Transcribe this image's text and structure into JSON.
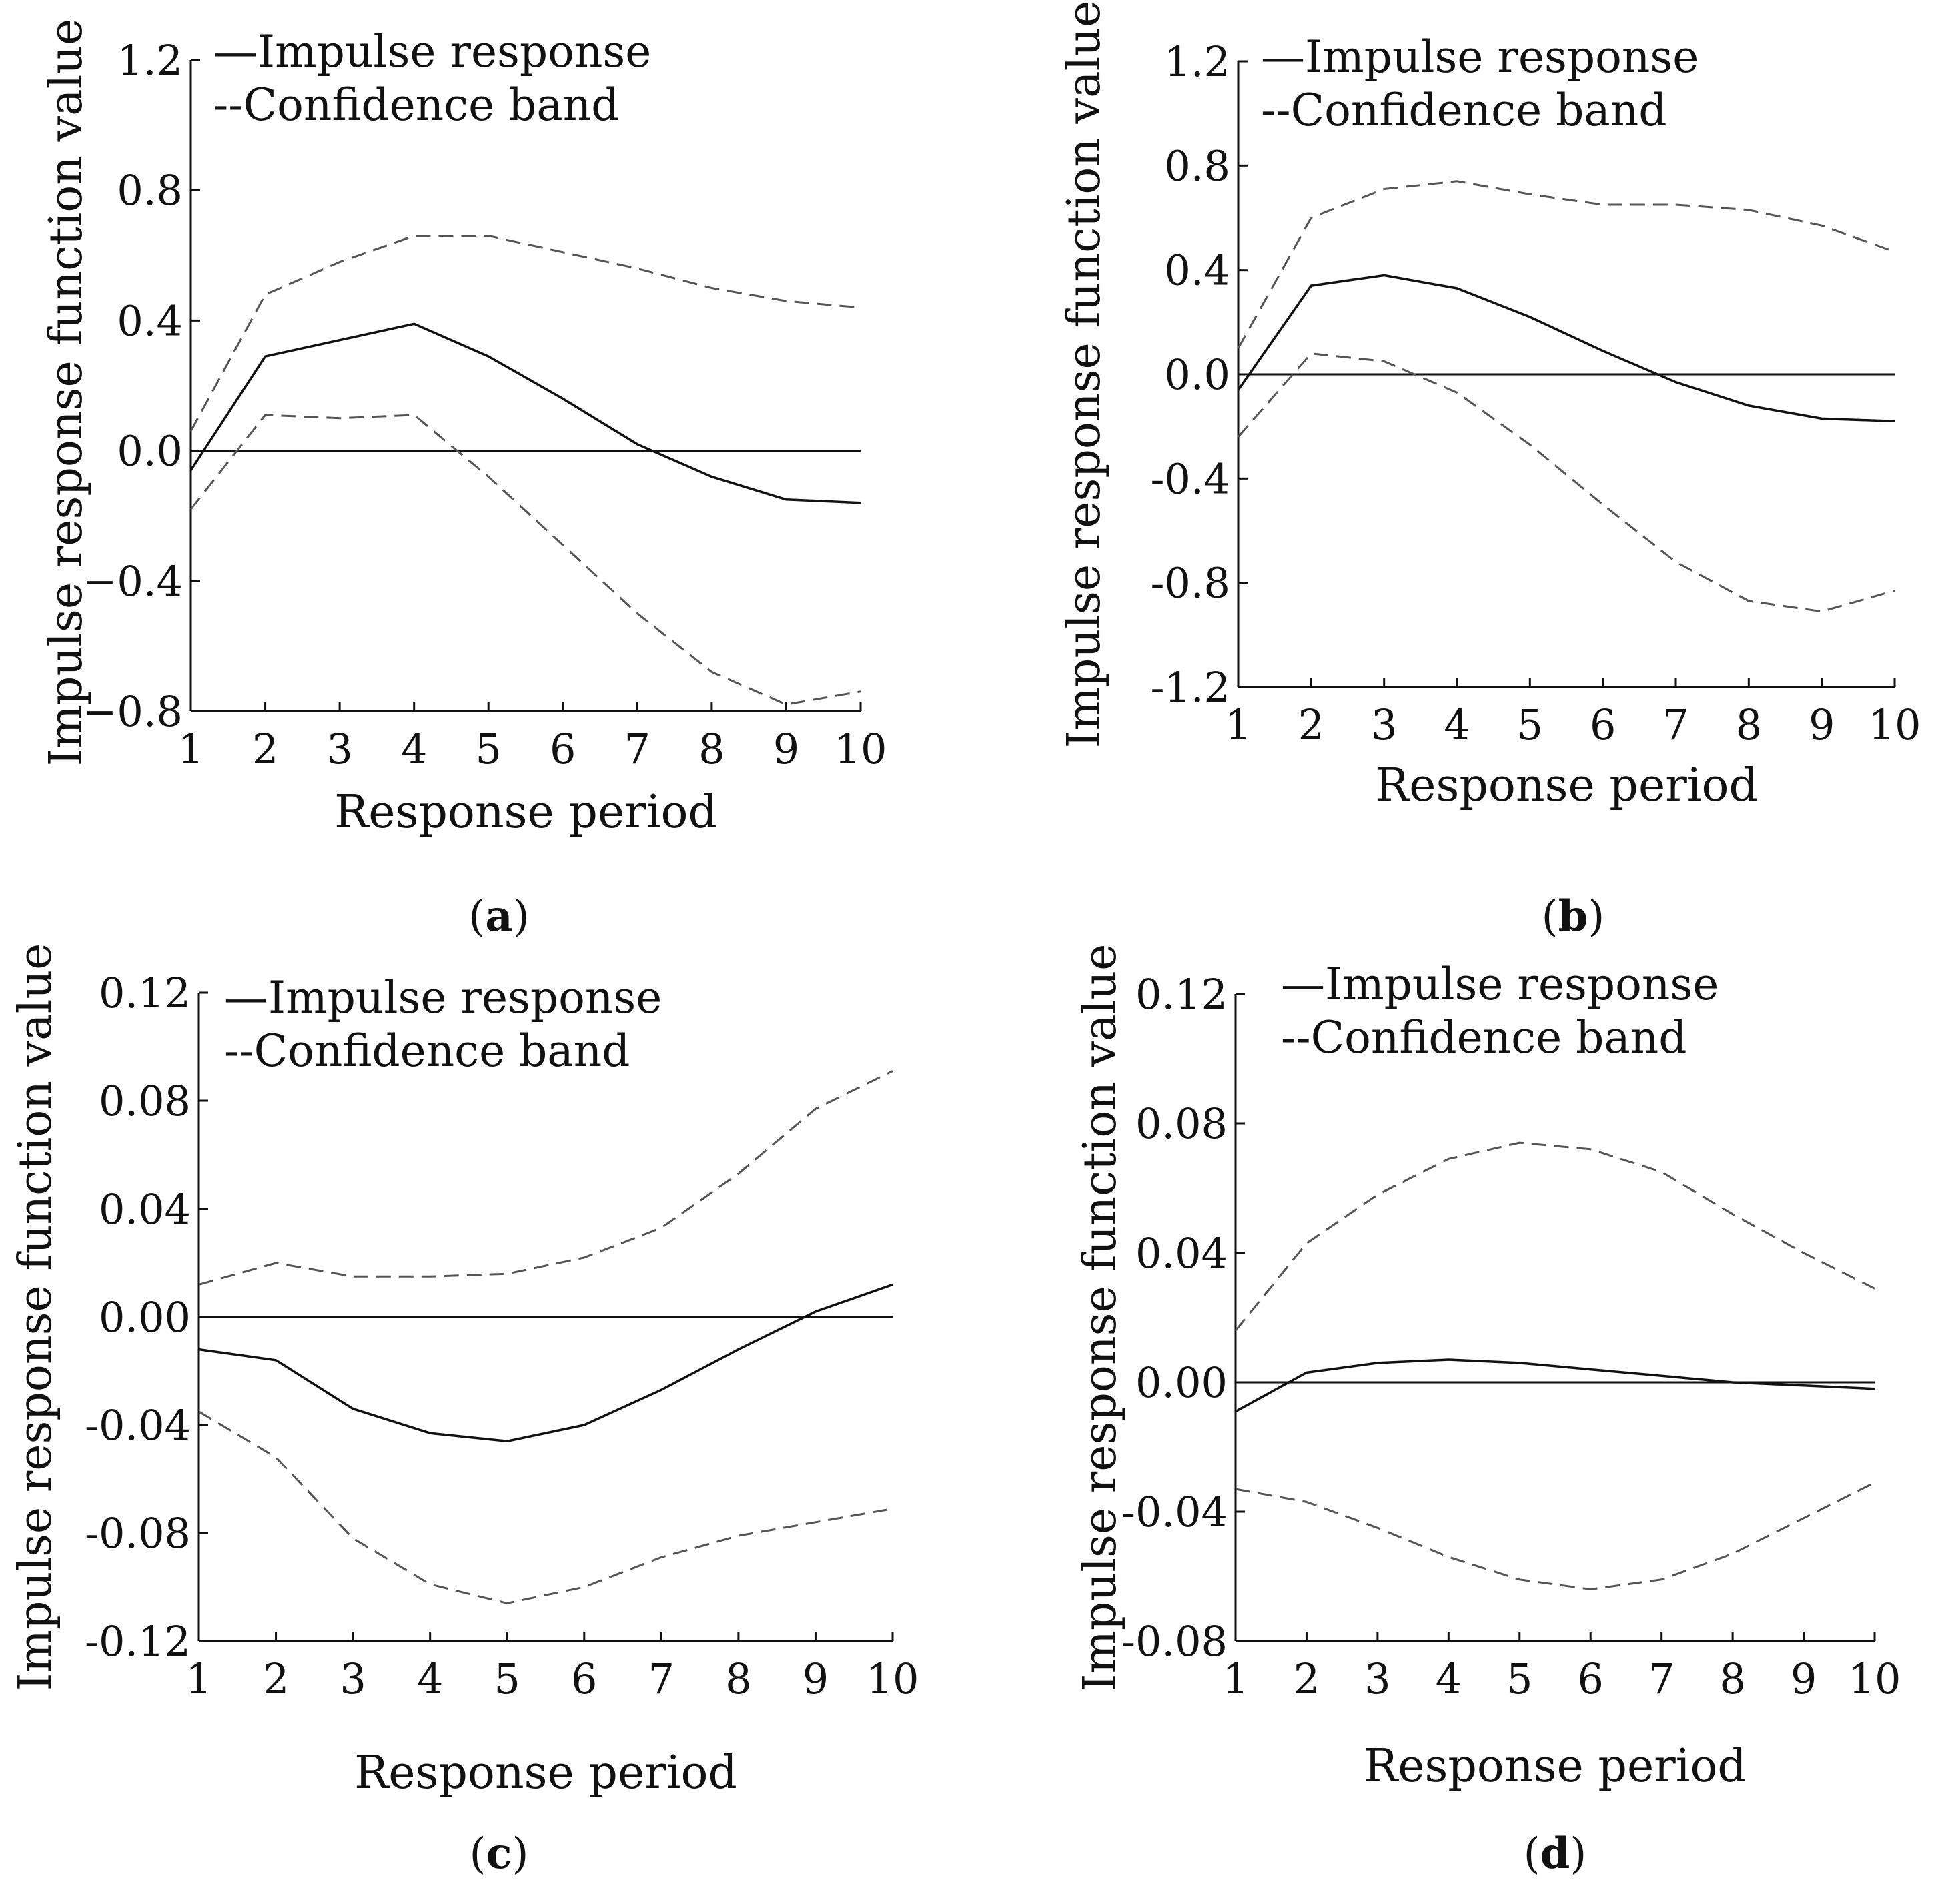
{
  "figure": {
    "colors": {
      "line": "#111111",
      "band": "#555555",
      "axis": "#111111",
      "background": "#ffffff"
    },
    "panels": [
      {
        "label_prefix": "(",
        "label_letter": "a",
        "label_suffix": ")"
      },
      {
        "label_prefix": "(",
        "label_letter": "b",
        "label_suffix": ")"
      },
      {
        "label_prefix": "(",
        "label_letter": "c",
        "label_suffix": ")"
      },
      {
        "label_prefix": "(",
        "label_letter": "d",
        "label_suffix": ")"
      }
    ]
  },
  "chart_data": [
    {
      "type": "line",
      "panel": "a",
      "xlabel": "Response period",
      "ylabel": "Impulse response function value",
      "legend": [
        "—Impulse response",
        "--Confidence band"
      ],
      "legend_position": "top-left",
      "x": [
        1,
        2,
        3,
        4,
        5,
        6,
        7,
        8,
        9,
        10
      ],
      "x_ticks": [
        "1",
        "2",
        "3",
        "4",
        "5",
        "6",
        "7",
        "8",
        "9",
        "10"
      ],
      "xlim": [
        1,
        10
      ],
      "y_ticks": [
        1.2,
        0.8,
        0.4,
        0.0,
        -0.4,
        -0.8
      ],
      "y_tick_labels": [
        "1.2",
        "0.8",
        "0.4",
        "0.0",
        "−0.4",
        "−0.8"
      ],
      "ylim": [
        -0.8,
        1.2
      ],
      "reference_line": 0,
      "series": [
        {
          "name": "Impulse response",
          "style": "solid",
          "values": [
            -0.06,
            0.29,
            0.34,
            0.39,
            0.29,
            0.16,
            0.02,
            -0.08,
            -0.15,
            -0.16
          ]
        },
        {
          "name": "Confidence band upper",
          "style": "dashed",
          "values": [
            0.06,
            0.48,
            0.58,
            0.66,
            0.66,
            0.61,
            0.56,
            0.5,
            0.46,
            0.44
          ]
        },
        {
          "name": "Confidence band lower",
          "style": "dashed",
          "values": [
            -0.18,
            0.11,
            0.1,
            0.11,
            -0.08,
            -0.29,
            -0.5,
            -0.68,
            -0.78,
            -0.74
          ]
        }
      ]
    },
    {
      "type": "line",
      "panel": "b",
      "xlabel": "Response period",
      "ylabel": "Impulse response function value",
      "legend": [
        "—Impulse response",
        "--Confidence band"
      ],
      "legend_position": "top-left",
      "x": [
        1,
        2,
        3,
        4,
        5,
        6,
        7,
        8,
        9,
        10
      ],
      "x_ticks": [
        "1",
        "2",
        "3",
        "4",
        "5",
        "6",
        "7",
        "8",
        "9",
        "10"
      ],
      "xlim": [
        1,
        10
      ],
      "y_ticks": [
        1.2,
        0.8,
        0.4,
        0.0,
        -0.4,
        -0.8,
        -1.2
      ],
      "y_tick_labels": [
        "1.2",
        "0.8",
        "0.4",
        "0.0",
        "-0.4",
        "-0.8",
        "-1.2"
      ],
      "ylim": [
        -1.2,
        1.2
      ],
      "reference_line": 0,
      "series": [
        {
          "name": "Impulse response",
          "style": "solid",
          "values": [
            -0.06,
            0.34,
            0.38,
            0.33,
            0.22,
            0.09,
            -0.03,
            -0.12,
            -0.17,
            -0.18
          ]
        },
        {
          "name": "Confidence band upper",
          "style": "dashed",
          "values": [
            0.1,
            0.6,
            0.71,
            0.74,
            0.69,
            0.65,
            0.65,
            0.63,
            0.57,
            0.47
          ]
        },
        {
          "name": "Confidence band lower",
          "style": "dashed",
          "values": [
            -0.24,
            0.08,
            0.05,
            -0.07,
            -0.27,
            -0.5,
            -0.72,
            -0.87,
            -0.91,
            -0.83
          ]
        }
      ]
    },
    {
      "type": "line",
      "panel": "c",
      "xlabel": "Response period",
      "ylabel": "Impulse response function value",
      "legend": [
        "—Impulse response",
        "--Confidence band"
      ],
      "legend_position": "top-left",
      "x": [
        1,
        2,
        3,
        4,
        5,
        6,
        7,
        8,
        9,
        10
      ],
      "x_ticks": [
        "1",
        "2",
        "3",
        "4",
        "5",
        "6",
        "7",
        "8",
        "9",
        "10"
      ],
      "xlim": [
        1,
        10
      ],
      "y_ticks": [
        0.12,
        0.08,
        0.04,
        0.0,
        -0.04,
        -0.08,
        -0.12
      ],
      "y_tick_labels": [
        "0.12",
        "0.08",
        "0.04",
        "0.00",
        "-0.04",
        "-0.08",
        "-0.12"
      ],
      "ylim": [
        -0.12,
        0.12
      ],
      "reference_line": 0,
      "series": [
        {
          "name": "Impulse response",
          "style": "solid",
          "values": [
            -0.012,
            -0.016,
            -0.034,
            -0.043,
            -0.046,
            -0.04,
            -0.027,
            -0.012,
            0.002,
            0.012
          ]
        },
        {
          "name": "Confidence band upper",
          "style": "dashed",
          "values": [
            0.012,
            0.02,
            0.015,
            0.015,
            0.016,
            0.022,
            0.033,
            0.053,
            0.077,
            0.091
          ]
        },
        {
          "name": "Confidence band lower",
          "style": "dashed",
          "values": [
            -0.035,
            -0.052,
            -0.082,
            -0.099,
            -0.106,
            -0.1,
            -0.089,
            -0.081,
            -0.076,
            -0.071
          ]
        }
      ]
    },
    {
      "type": "line",
      "panel": "d",
      "xlabel": "Response period",
      "ylabel": "Impulse response function value",
      "legend": [
        "—Impulse response",
        "--Confidence band"
      ],
      "legend_position": "top-left",
      "x": [
        1,
        2,
        3,
        4,
        5,
        6,
        7,
        8,
        9,
        10
      ],
      "x_ticks": [
        "1",
        "2",
        "3",
        "4",
        "5",
        "6",
        "7",
        "8",
        "9",
        "10"
      ],
      "xlim": [
        1,
        10
      ],
      "y_ticks": [
        0.12,
        0.08,
        0.04,
        0.0,
        -0.04,
        -0.08
      ],
      "y_tick_labels": [
        "0.12",
        "0.08",
        "0.04",
        "0.00",
        "-0.04",
        "-0.08"
      ],
      "ylim": [
        -0.08,
        0.12
      ],
      "reference_line": 0,
      "series": [
        {
          "name": "Impulse response",
          "style": "solid",
          "values": [
            -0.009,
            0.003,
            0.006,
            0.007,
            0.006,
            0.004,
            0.002,
            0.0,
            -0.001,
            -0.002
          ]
        },
        {
          "name": "Confidence band upper",
          "style": "dashed",
          "values": [
            0.016,
            0.043,
            0.058,
            0.069,
            0.074,
            0.072,
            0.065,
            0.052,
            0.04,
            0.029
          ]
        },
        {
          "name": "Confidence band lower",
          "style": "dashed",
          "values": [
            -0.033,
            -0.037,
            -0.045,
            -0.054,
            -0.061,
            -0.064,
            -0.061,
            -0.053,
            -0.042,
            -0.031
          ]
        }
      ]
    }
  ]
}
